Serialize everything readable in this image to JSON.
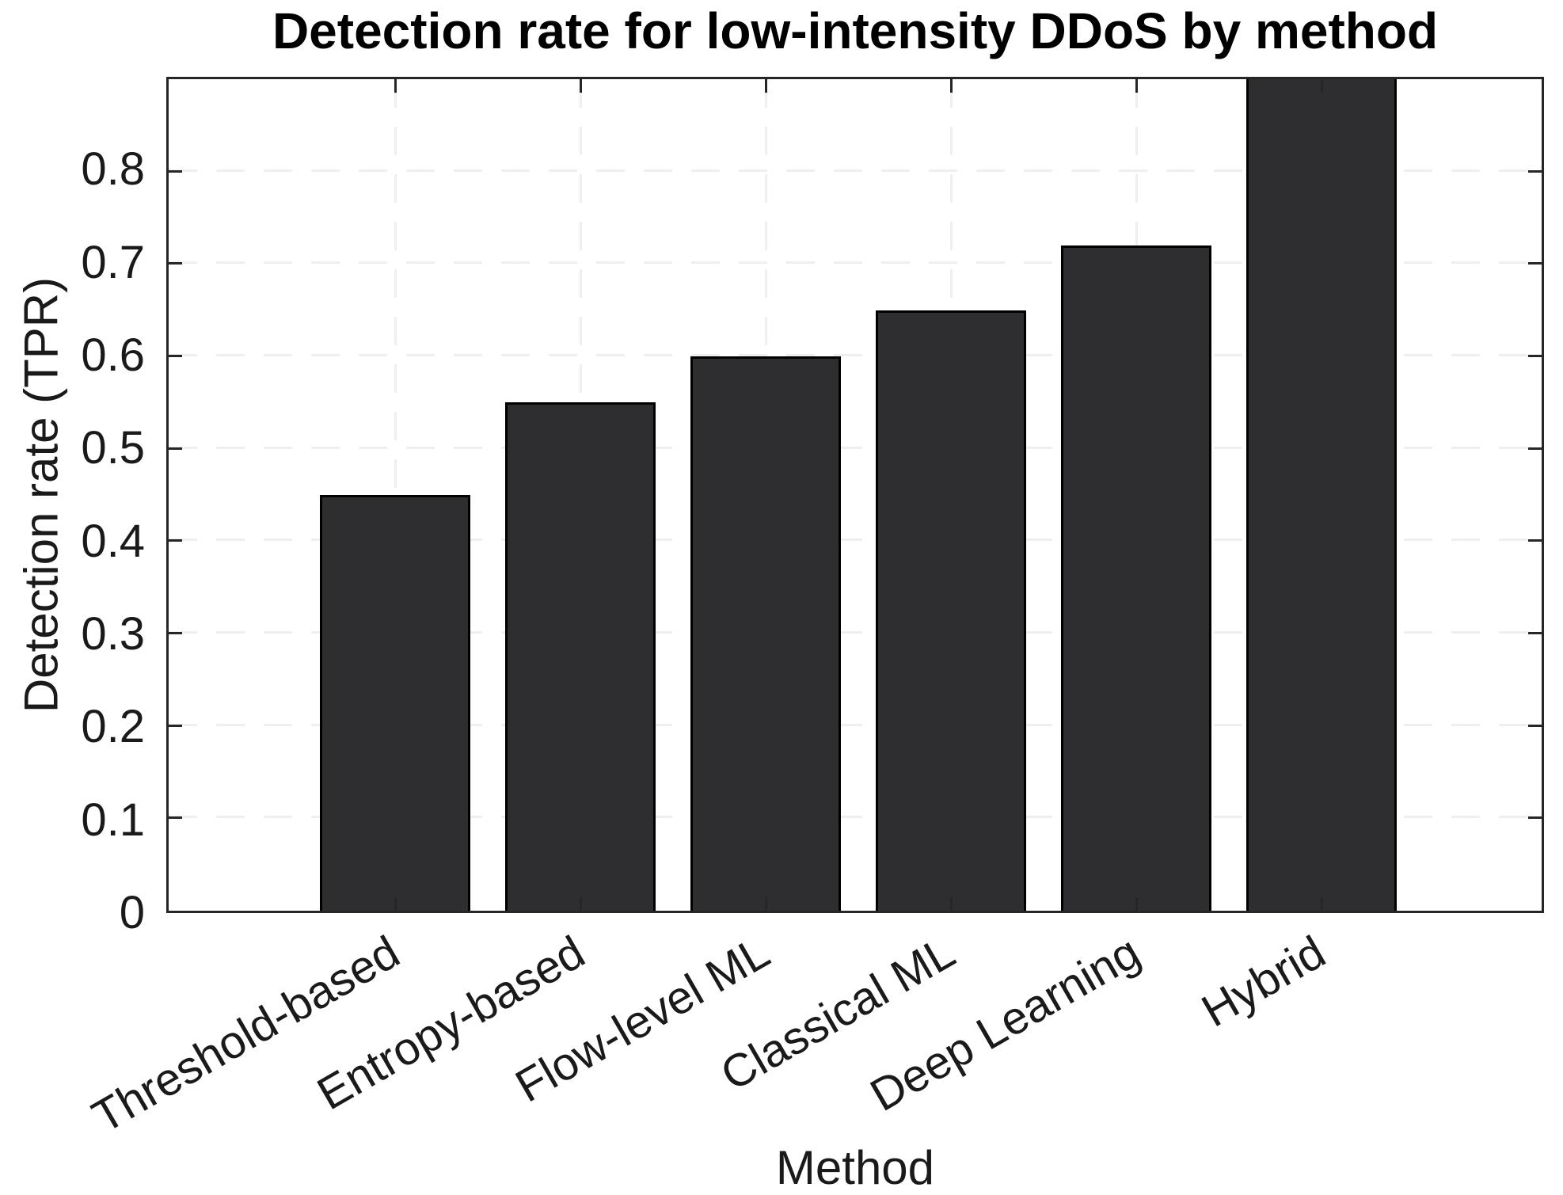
{
  "chart_data": {
    "type": "bar",
    "title": "Detection rate for low-intensity DDoS by method",
    "xlabel": "Method",
    "ylabel": "Detection rate (TPR)",
    "categories": [
      "Threshold-based",
      "Entropy-based",
      "Flow-level ML",
      "Classical ML",
      "Deep Learning",
      "Hybrid"
    ],
    "values": [
      0.45,
      0.55,
      0.6,
      0.65,
      0.72,
      0.9
    ],
    "ylim": [
      0,
      0.9
    ],
    "yticks": [
      0,
      0.1,
      0.2,
      0.3,
      0.4,
      0.5,
      0.6,
      0.7,
      0.8
    ],
    "ytick_labels": [
      "0",
      "0.1",
      "0.2",
      "0.3",
      "0.4",
      "0.5",
      "0.6",
      "0.7",
      "0.8"
    ],
    "last_bar_clipped_at_top": true,
    "x_tick_label_rotation_deg": 30,
    "grid": "both-dashed",
    "legend": "none",
    "colors": {
      "bar_fill": "#2e2e30",
      "bar_edge": "#000000",
      "axis": "#262626",
      "grid_line": "#efefef",
      "text": "#1a1a1a",
      "background": "#ffffff"
    }
  }
}
